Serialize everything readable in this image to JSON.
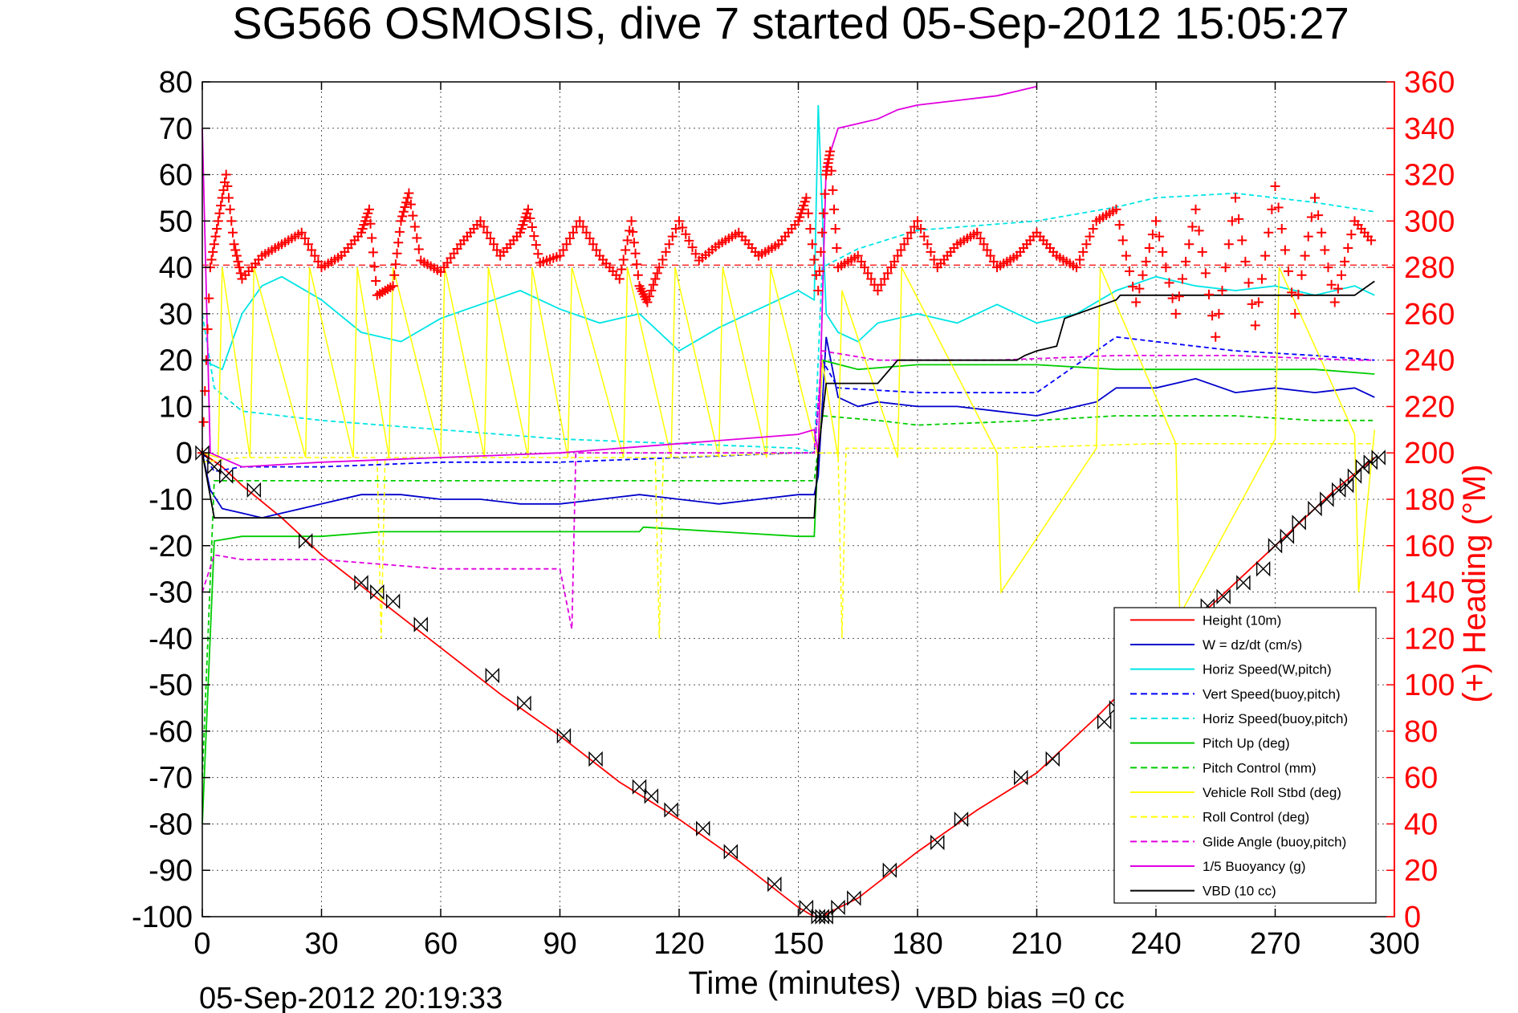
{
  "chart_data": {
    "type": "line",
    "title": "SG566 OSMOSIS, dive 7 started 05-Sep-2012 15:05:27",
    "xlabel": "Time (minutes)",
    "ylabel": "",
    "ylabel_right": "(+) Heading (°M)",
    "footer_left": "05-Sep-2012 20:19:33",
    "footer_right": "VBD bias =0 cc",
    "xlim": [
      0,
      300
    ],
    "ylim": [
      -100,
      80
    ],
    "ylim_right": [
      0,
      360
    ],
    "xticks": [
      0,
      30,
      60,
      90,
      120,
      150,
      180,
      210,
      240,
      270,
      300
    ],
    "yticks": [
      80,
      70,
      60,
      50,
      40,
      30,
      20,
      10,
      0,
      -10,
      -20,
      -30,
      -40,
      -50,
      -60,
      -70,
      -80,
      -90,
      -100
    ],
    "yticks_right": [
      360,
      340,
      320,
      300,
      280,
      260,
      240,
      220,
      200,
      180,
      160,
      140,
      120,
      100,
      80,
      60,
      40,
      20,
      0
    ],
    "grid": true,
    "legend_position": "bottom-right",
    "legend": [
      {
        "label": "Height (10m)",
        "color": "#ff0000",
        "dash": "solid"
      },
      {
        "label": "W = dz/dt (cm/s)",
        "color": "#0000cc",
        "dash": "solid"
      },
      {
        "label": "Horiz Speed(W,pitch)",
        "color": "#00e5e5",
        "dash": "solid"
      },
      {
        "label": "Vert Speed(buoy,pitch)",
        "color": "#0000ff",
        "dash": "dashed"
      },
      {
        "label": "Horiz Speed(buoy,pitch)",
        "color": "#00e5e5",
        "dash": "dashed"
      },
      {
        "label": "Pitch Up (deg)",
        "color": "#00cc00",
        "dash": "solid"
      },
      {
        "label": "Pitch Control (mm)",
        "color": "#00cc00",
        "dash": "dashed"
      },
      {
        "label": "Vehicle Roll Stbd (deg)",
        "color": "#ffff00",
        "dash": "solid"
      },
      {
        "label": "Roll Control (deg)",
        "color": "#ffff00",
        "dash": "dashed"
      },
      {
        "label": "Glide Angle (buoy,pitch)",
        "color": "#e000e0",
        "dash": "dashed"
      },
      {
        "label": "1/5 Buoyancy (g)",
        "color": "#e000e0",
        "dash": "solid"
      },
      {
        "label": "VBD (10 cc)",
        "color": "#000000",
        "dash": "solid"
      }
    ],
    "series": [
      {
        "name": "Height (10m)",
        "color": "#ff0000",
        "x": [
          0,
          5,
          10,
          20,
          30,
          45,
          60,
          75,
          90,
          105,
          120,
          135,
          150,
          154,
          156,
          158,
          165,
          180,
          195,
          210,
          225,
          240,
          255,
          270,
          285,
          295
        ],
        "y": [
          0,
          -3,
          -7,
          -14,
          -22,
          -32,
          -42,
          -52,
          -61,
          -71,
          -79,
          -88,
          -98,
          -100,
          -100,
          -99,
          -96,
          -86,
          -77,
          -69,
          -57,
          -44,
          -32,
          -20,
          -8,
          -1
        ]
      },
      {
        "name": "W = dz/dt (cm/s)",
        "color": "#0000cc",
        "x": [
          0,
          2,
          5,
          10,
          15,
          20,
          30,
          40,
          50,
          60,
          70,
          80,
          90,
          100,
          110,
          120,
          130,
          140,
          150,
          154,
          155,
          157,
          160,
          165,
          170,
          180,
          190,
          200,
          210,
          220,
          225,
          230,
          240,
          250,
          260,
          270,
          280,
          290,
          295
        ],
        "y": [
          0,
          -8,
          -12,
          -13,
          -14,
          -13,
          -11,
          -9,
          -9,
          -10,
          -10,
          -11,
          -11,
          -10,
          -9,
          -10,
          -11,
          -10,
          -9,
          -9,
          -5,
          25,
          12,
          10,
          11,
          10,
          10,
          9,
          8,
          10,
          11,
          14,
          14,
          16,
          13,
          14,
          13,
          14,
          12
        ]
      },
      {
        "name": "Horiz Speed(W,pitch)",
        "color": "#00e5e5",
        "x": [
          0,
          5,
          10,
          15,
          20,
          30,
          40,
          50,
          60,
          70,
          80,
          90,
          100,
          110,
          120,
          130,
          140,
          150,
          154,
          155,
          157,
          160,
          165,
          170,
          180,
          190,
          200,
          210,
          220,
          230,
          240,
          250,
          260,
          270,
          280,
          290,
          295
        ],
        "y": [
          20,
          18,
          30,
          36,
          38,
          33,
          26,
          24,
          29,
          32,
          35,
          31,
          28,
          30,
          22,
          27,
          31,
          35,
          33,
          75,
          30,
          26,
          24,
          28,
          30,
          28,
          32,
          28,
          30,
          35,
          38,
          36,
          35,
          36,
          34,
          36,
          34
        ]
      },
      {
        "name": "Vert Speed(buoy,pitch)",
        "color": "#0000ff",
        "dash": "6,4",
        "x": [
          0,
          3,
          10,
          30,
          60,
          90,
          120,
          150,
          154,
          156,
          160,
          180,
          210,
          230,
          240,
          260,
          280,
          295
        ],
        "y": [
          0,
          -4,
          -3,
          -3,
          -2,
          -2,
          -1,
          0,
          0,
          20,
          14,
          13,
          13,
          25,
          24,
          22,
          21,
          20
        ]
      },
      {
        "name": "Horiz Speed(buoy,pitch)",
        "color": "#00e5e5",
        "dash": "6,4",
        "x": [
          0,
          3,
          10,
          30,
          60,
          90,
          120,
          150,
          154,
          156,
          165,
          180,
          210,
          230,
          240,
          260,
          280,
          295
        ],
        "y": [
          30,
          14,
          9,
          7,
          5,
          3,
          2,
          1,
          0,
          40,
          44,
          48,
          50,
          53,
          55,
          56,
          54,
          52
        ]
      },
      {
        "name": "Pitch Up (deg)",
        "color": "#00cc00",
        "x": [
          0,
          3,
          10,
          30,
          45,
          60,
          90,
          110,
          111,
          130,
          150,
          154,
          156,
          165,
          180,
          210,
          230,
          260,
          280,
          295
        ],
        "y": [
          -80,
          -19,
          -18,
          -18,
          -17,
          -17,
          -17,
          -17,
          -16,
          -17,
          -18,
          -18,
          20,
          18,
          19,
          19,
          18,
          18,
          18,
          17
        ]
      },
      {
        "name": "Pitch Control (mm)",
        "color": "#00cc00",
        "dash": "6,4",
        "x": [
          0,
          3,
          10,
          30,
          60,
          90,
          120,
          150,
          154,
          156,
          170,
          180,
          210,
          230,
          260,
          280,
          295
        ],
        "y": [
          -70,
          -6,
          -6,
          -6,
          -6,
          -6,
          -6,
          -6,
          -6,
          8,
          7,
          6,
          7,
          8,
          8,
          7,
          7
        ]
      },
      {
        "name": "Vehicle Roll Stbd (deg)",
        "color": "#ffff00",
        "x": [
          0,
          4,
          5,
          12,
          13,
          26,
          27,
          38,
          39,
          47,
          48,
          60,
          61,
          71,
          72,
          82,
          83,
          92,
          93,
          106,
          107,
          118,
          119,
          130,
          131,
          142,
          143,
          155,
          156,
          160,
          161,
          175,
          176,
          200,
          201,
          225,
          226,
          245,
          246,
          270,
          271,
          290,
          291,
          295
        ],
        "y": [
          0,
          -1,
          40,
          -1,
          40,
          -1,
          40,
          -1,
          40,
          -1,
          40,
          -1,
          40,
          -1,
          40,
          -1,
          40,
          -1,
          40,
          -1,
          40,
          -1,
          40,
          -1,
          40,
          -1,
          40,
          -1,
          20,
          -1,
          35,
          -1,
          40,
          0,
          -30,
          1,
          40,
          2,
          -35,
          3,
          40,
          4,
          -30,
          5
        ]
      },
      {
        "name": "Roll Control (deg)",
        "color": "#ffff00",
        "dash": "6,4",
        "x": [
          0,
          10,
          44,
          45,
          46,
          90,
          114,
          115,
          116,
          150,
          160,
          161,
          162,
          200,
          240,
          295
        ],
        "y": [
          -2,
          -1,
          -1,
          -40,
          -1,
          -1,
          -1,
          -40,
          -1,
          0,
          0,
          -40,
          1,
          1,
          2,
          2
        ]
      },
      {
        "name": "Glide Angle (buoy,pitch)",
        "color": "#e000e0",
        "dash": "6,4",
        "x": [
          0,
          3,
          10,
          30,
          45,
          60,
          75,
          90,
          93,
          94,
          120,
          150,
          154,
          156,
          170,
          200,
          230,
          260,
          290,
          295
        ],
        "y": [
          -30,
          -22,
          -23,
          -23,
          -24,
          -25,
          -25,
          -25,
          -38,
          0,
          0,
          0,
          0,
          22,
          20,
          20,
          21,
          21,
          20,
          20
        ]
      },
      {
        "name": "1/5 Buoyancy (g)",
        "color": "#e000e0",
        "x": [
          0,
          2,
          10,
          30,
          60,
          90,
          120,
          150,
          154,
          155,
          157,
          160,
          165,
          170,
          175,
          180,
          190,
          200,
          205,
          210
        ],
        "y": [
          70,
          0,
          -3,
          -2,
          -1,
          0,
          2,
          4,
          5,
          0,
          62,
          70,
          71,
          72,
          74,
          75,
          76,
          77,
          78,
          79
        ]
      },
      {
        "name": "VBD (10 cc)",
        "color": "#000000",
        "x": [
          0,
          3,
          10,
          60,
          120,
          154,
          155,
          157,
          160,
          170,
          175,
          195,
          205,
          207,
          210,
          215,
          217,
          230,
          231,
          240,
          260,
          280,
          290,
          295
        ],
        "y": [
          0,
          -14,
          -14,
          -14,
          -14,
          -14,
          0,
          15,
          15,
          15,
          20,
          20,
          20,
          21,
          22,
          23,
          29,
          33,
          34,
          34,
          34,
          34,
          34,
          37
        ]
      },
      {
        "name": "Heading",
        "color": "#ff0000",
        "marker": "+",
        "axis": "right",
        "x": [
          0,
          2,
          4,
          6,
          8,
          10,
          15,
          20,
          25,
          30,
          35,
          40,
          42,
          44,
          48,
          50,
          52,
          55,
          60,
          65,
          70,
          75,
          80,
          82,
          85,
          90,
          95,
          100,
          105,
          108,
          110,
          112,
          115,
          120,
          125,
          130,
          135,
          140,
          145,
          150,
          152,
          155,
          157,
          158,
          160,
          165,
          170,
          175,
          180,
          185,
          190,
          195,
          200,
          205,
          210,
          215,
          220,
          225,
          230,
          235,
          240,
          245,
          250,
          255,
          260,
          265,
          270,
          275,
          280,
          285,
          290,
          295
        ],
        "y": [
          200,
          280,
          300,
          320,
          290,
          275,
          285,
          290,
          295,
          280,
          285,
          295,
          305,
          268,
          272,
          300,
          312,
          283,
          278,
          290,
          300,
          285,
          295,
          305,
          282,
          285,
          300,
          285,
          275,
          300,
          272,
          265,
          280,
          300,
          283,
          290,
          295,
          285,
          290,
          300,
          310,
          270,
          320,
          330,
          280,
          285,
          270,
          285,
          300,
          280,
          290,
          295,
          280,
          285,
          295,
          285,
          280,
          300,
          305,
          265,
          300,
          260,
          305,
          250,
          310,
          255,
          315,
          260,
          310,
          265,
          300,
          290
        ]
      }
    ],
    "dive_markers": {
      "x": [
        0,
        3,
        6,
        13,
        26,
        40,
        44,
        48,
        55,
        73,
        81,
        91,
        99,
        110,
        113,
        118,
        126,
        133,
        144,
        152,
        155,
        156,
        157,
        160,
        164,
        173,
        185,
        191,
        206,
        214,
        227,
        230,
        237,
        245,
        253,
        257,
        262,
        267,
        270,
        273,
        276,
        280,
        283,
        286,
        288,
        290,
        292,
        294,
        296
      ],
      "y": [
        0,
        -3,
        -5,
        -8,
        -19,
        -28,
        -30,
        -32,
        -37,
        -48,
        -54,
        -61,
        -66,
        -72,
        -74,
        -77,
        -81,
        -86,
        -93,
        -98,
        -100,
        -100,
        -100,
        -98,
        -96,
        -90,
        -84,
        -79,
        -70,
        -66,
        -58,
        -55,
        -48,
        -41,
        -33,
        -31,
        -28,
        -25,
        -20,
        -18,
        -15,
        -12,
        -10,
        -8,
        -7,
        -5,
        -3,
        -2,
        -1
      ]
    },
    "heading_reference": 281
  }
}
